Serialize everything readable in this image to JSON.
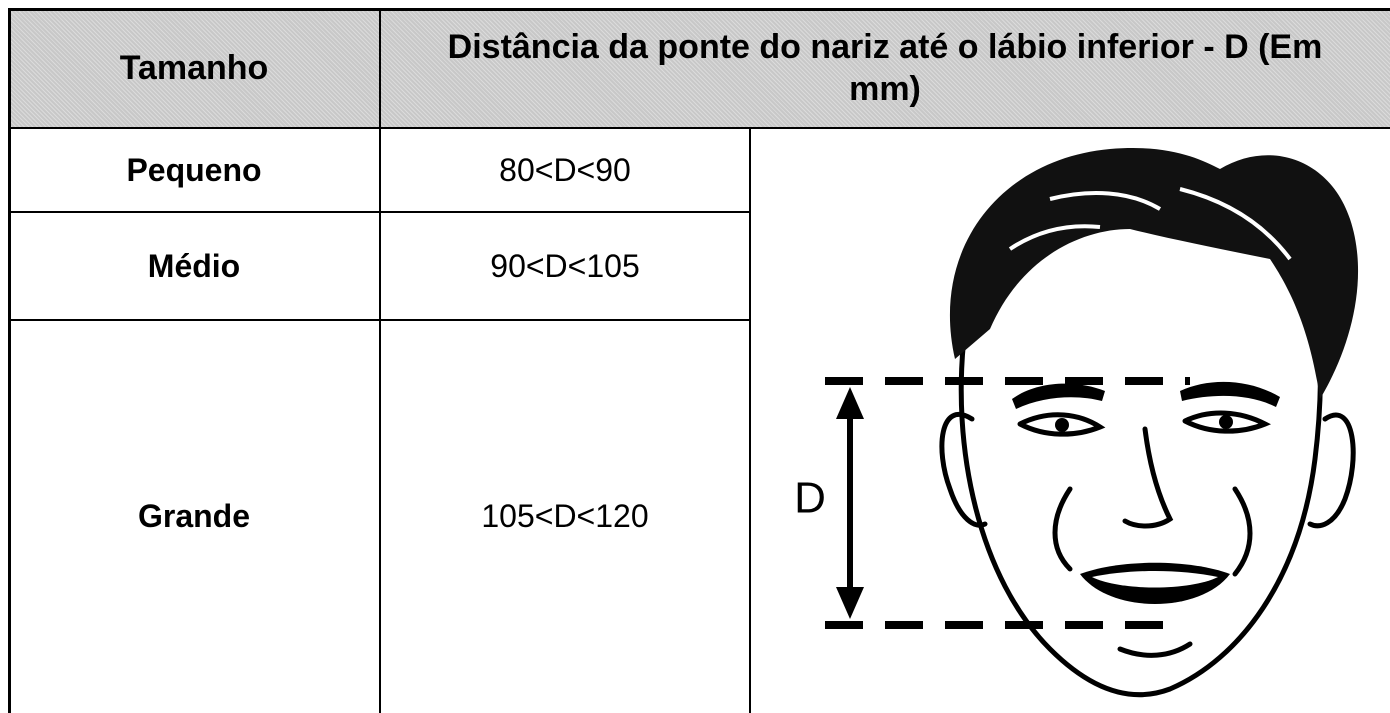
{
  "table": {
    "header": [
      "Tamanho",
      "Distância da ponte do nariz até o lábio inferior - D (Em mm)"
    ],
    "rows": [
      [
        "Pequeno",
        "80<D<90"
      ],
      [
        "Médio",
        "90<D<105"
      ],
      [
        "Grande",
        "105<D<120"
      ]
    ]
  },
  "figure": {
    "label": "D"
  }
}
